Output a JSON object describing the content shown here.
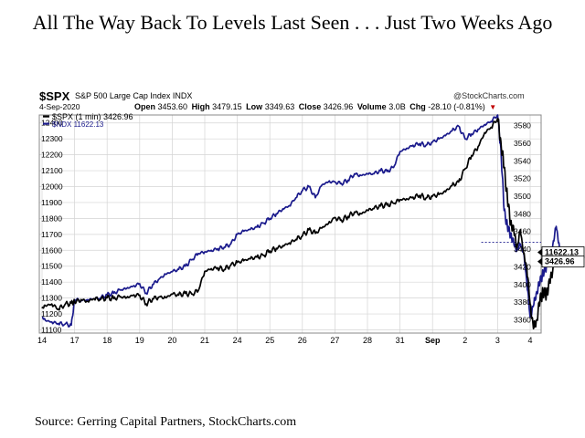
{
  "page_title": "All The Way Back To Levels Last Seen . . . Just Two Weeks Ago",
  "source": "Source: Gerring Capital Partners, StockCharts.com",
  "header": {
    "symbol": "$SPX",
    "description": "S&P 500 Large Cap Index INDX",
    "watermark": "@StockCharts.com",
    "date": "4-Sep-2020",
    "open_label": "Open",
    "open": "3453.60",
    "high_label": "High",
    "high": "3479.15",
    "low_label": "Low",
    "low": "3349.63",
    "close_label": "Close",
    "close": "3426.96",
    "volume_label": "Volume",
    "volume": "3.0B",
    "chg_label": "Chg",
    "chg": "-28.10 (-0.81%)",
    "chg_arrow": "▼"
  },
  "colors": {
    "spx": "#000000",
    "ndx": "#1a1a8c",
    "grid": "#d4d4d4",
    "tag_line": "#1a1a8c"
  },
  "chart_data": {
    "type": "line",
    "legend_position": "top-left",
    "legend": [
      {
        "text": "$SPX (1 min) 3426.96",
        "color": "#000000"
      },
      {
        "text": "$NDX 11622.13",
        "color": "#1a1a8c"
      }
    ],
    "x_ticks": [
      "14",
      "17",
      "18",
      "19",
      "20",
      "21",
      "24",
      "25",
      "26",
      "27",
      "28",
      "31",
      "Sep",
      "2",
      "3",
      "4"
    ],
    "left_axis": {
      "series": "$NDX",
      "range": [
        11080,
        12450
      ],
      "ticks": [
        11100,
        11200,
        11300,
        11400,
        11500,
        11600,
        11700,
        11800,
        11900,
        12000,
        12100,
        12200,
        12300,
        12400
      ]
    },
    "right_axis": {
      "series": "$SPX",
      "range": [
        3345,
        3592
      ],
      "ticks": [
        3360,
        3380,
        3400,
        3420,
        3440,
        3460,
        3480,
        3500,
        3520,
        3540,
        3560,
        3580
      ]
    },
    "last_value_tags": [
      {
        "series": "$NDX",
        "text": "11622.13"
      },
      {
        "series": "$SPX",
        "text": "3426.96"
      }
    ],
    "dashed_reference_level": 11650,
    "series": [
      {
        "name": "$SPX",
        "axis": "right",
        "color": "#000000",
        "x": [
          0,
          0.1,
          0.3,
          0.5,
          0.7,
          0.9,
          1,
          1.2,
          1.4,
          1.6,
          1.8,
          2,
          2.2,
          2.4,
          2.6,
          2.8,
          3,
          3.2,
          3.4,
          3.6,
          3.8,
          4,
          4.2,
          4.4,
          4.6,
          4.8,
          5,
          5.2,
          5.4,
          5.6,
          5.8,
          6,
          6.2,
          6.4,
          6.6,
          6.8,
          7,
          7.2,
          7.4,
          7.6,
          7.8,
          8,
          8.2,
          8.4,
          8.6,
          8.8,
          9,
          9.2,
          9.4,
          9.6,
          9.8,
          10,
          10.2,
          10.4,
          10.6,
          10.8,
          11,
          11.2,
          11.4,
          11.6,
          11.8,
          12,
          12.2,
          12.4,
          12.6,
          12.8,
          13,
          13.2,
          13.4,
          13.6,
          13.8,
          14,
          14.1,
          14.2,
          14.3,
          14.4,
          14.5,
          14.6,
          14.7,
          14.8,
          14.9,
          15,
          15.1,
          15.2,
          15.3,
          15.4,
          15.5,
          15.6,
          15.7,
          15.8,
          15.9
        ],
        "values": [
          3373,
          3376,
          3378,
          3372,
          3377,
          3379,
          3380,
          3383,
          3381,
          3384,
          3383,
          3385,
          3384,
          3386,
          3385,
          3388,
          3388,
          3378,
          3384,
          3386,
          3385,
          3389,
          3388,
          3390,
          3389,
          3393,
          3415,
          3418,
          3419,
          3417,
          3422,
          3425,
          3427,
          3429,
          3431,
          3433,
          3438,
          3441,
          3444,
          3447,
          3451,
          3455,
          3462,
          3458,
          3464,
          3469,
          3476,
          3473,
          3477,
          3482,
          3480,
          3484,
          3486,
          3489,
          3490,
          3492,
          3496,
          3497,
          3499,
          3501,
          3498,
          3500,
          3502,
          3505,
          3512,
          3516,
          3531,
          3546,
          3556,
          3572,
          3578,
          3588,
          3562,
          3532,
          3498,
          3470,
          3460,
          3442,
          3462,
          3435,
          3418,
          3378,
          3350,
          3360,
          3382,
          3392,
          3389,
          3402,
          3418,
          3442,
          3427
        ]
      },
      {
        "name": "$NDX",
        "axis": "left",
        "color": "#1a1a8c",
        "x": [
          0,
          0.1,
          0.3,
          0.5,
          0.7,
          0.9,
          1,
          1.2,
          1.4,
          1.6,
          1.8,
          2,
          2.2,
          2.4,
          2.6,
          2.8,
          3,
          3.2,
          3.4,
          3.6,
          3.8,
          4,
          4.2,
          4.4,
          4.6,
          4.8,
          5,
          5.2,
          5.4,
          5.6,
          5.8,
          6,
          6.2,
          6.4,
          6.6,
          6.8,
          7,
          7.2,
          7.4,
          7.6,
          7.8,
          8,
          8.2,
          8.4,
          8.6,
          8.8,
          9,
          9.2,
          9.4,
          9.6,
          9.8,
          10,
          10.2,
          10.4,
          10.6,
          10.8,
          11,
          11.2,
          11.4,
          11.6,
          11.8,
          12,
          12.2,
          12.4,
          12.6,
          12.8,
          13,
          13.2,
          13.4,
          13.6,
          13.8,
          14,
          14.1,
          14.2,
          14.3,
          14.4,
          14.5,
          14.6,
          14.7,
          14.8,
          14.9,
          15,
          15.1,
          15.2,
          15.3,
          15.4,
          15.5,
          15.6,
          15.7,
          15.8,
          15.9
        ],
        "values": [
          11180,
          11160,
          11150,
          11140,
          11135,
          11130,
          11290,
          11285,
          11290,
          11295,
          11300,
          11320,
          11330,
          11350,
          11360,
          11375,
          11390,
          11330,
          11385,
          11420,
          11450,
          11465,
          11480,
          11500,
          11540,
          11580,
          11590,
          11600,
          11610,
          11620,
          11640,
          11700,
          11720,
          11730,
          11745,
          11770,
          11800,
          11830,
          11860,
          11880,
          11930,
          11975,
          12000,
          11930,
          12010,
          12030,
          12030,
          12020,
          12040,
          12080,
          12070,
          12080,
          12080,
          12100,
          12095,
          12120,
          12220,
          12240,
          12260,
          12270,
          12260,
          12280,
          12300,
          12320,
          12350,
          12380,
          12300,
          12330,
          12360,
          12390,
          12410,
          12450,
          12240,
          11850,
          11750,
          11700,
          11640,
          11600,
          11640,
          11580,
          11400,
          11180,
          11250,
          11340,
          11400,
          11460,
          11500,
          11560,
          11640,
          11750,
          11622
        ]
      }
    ]
  }
}
